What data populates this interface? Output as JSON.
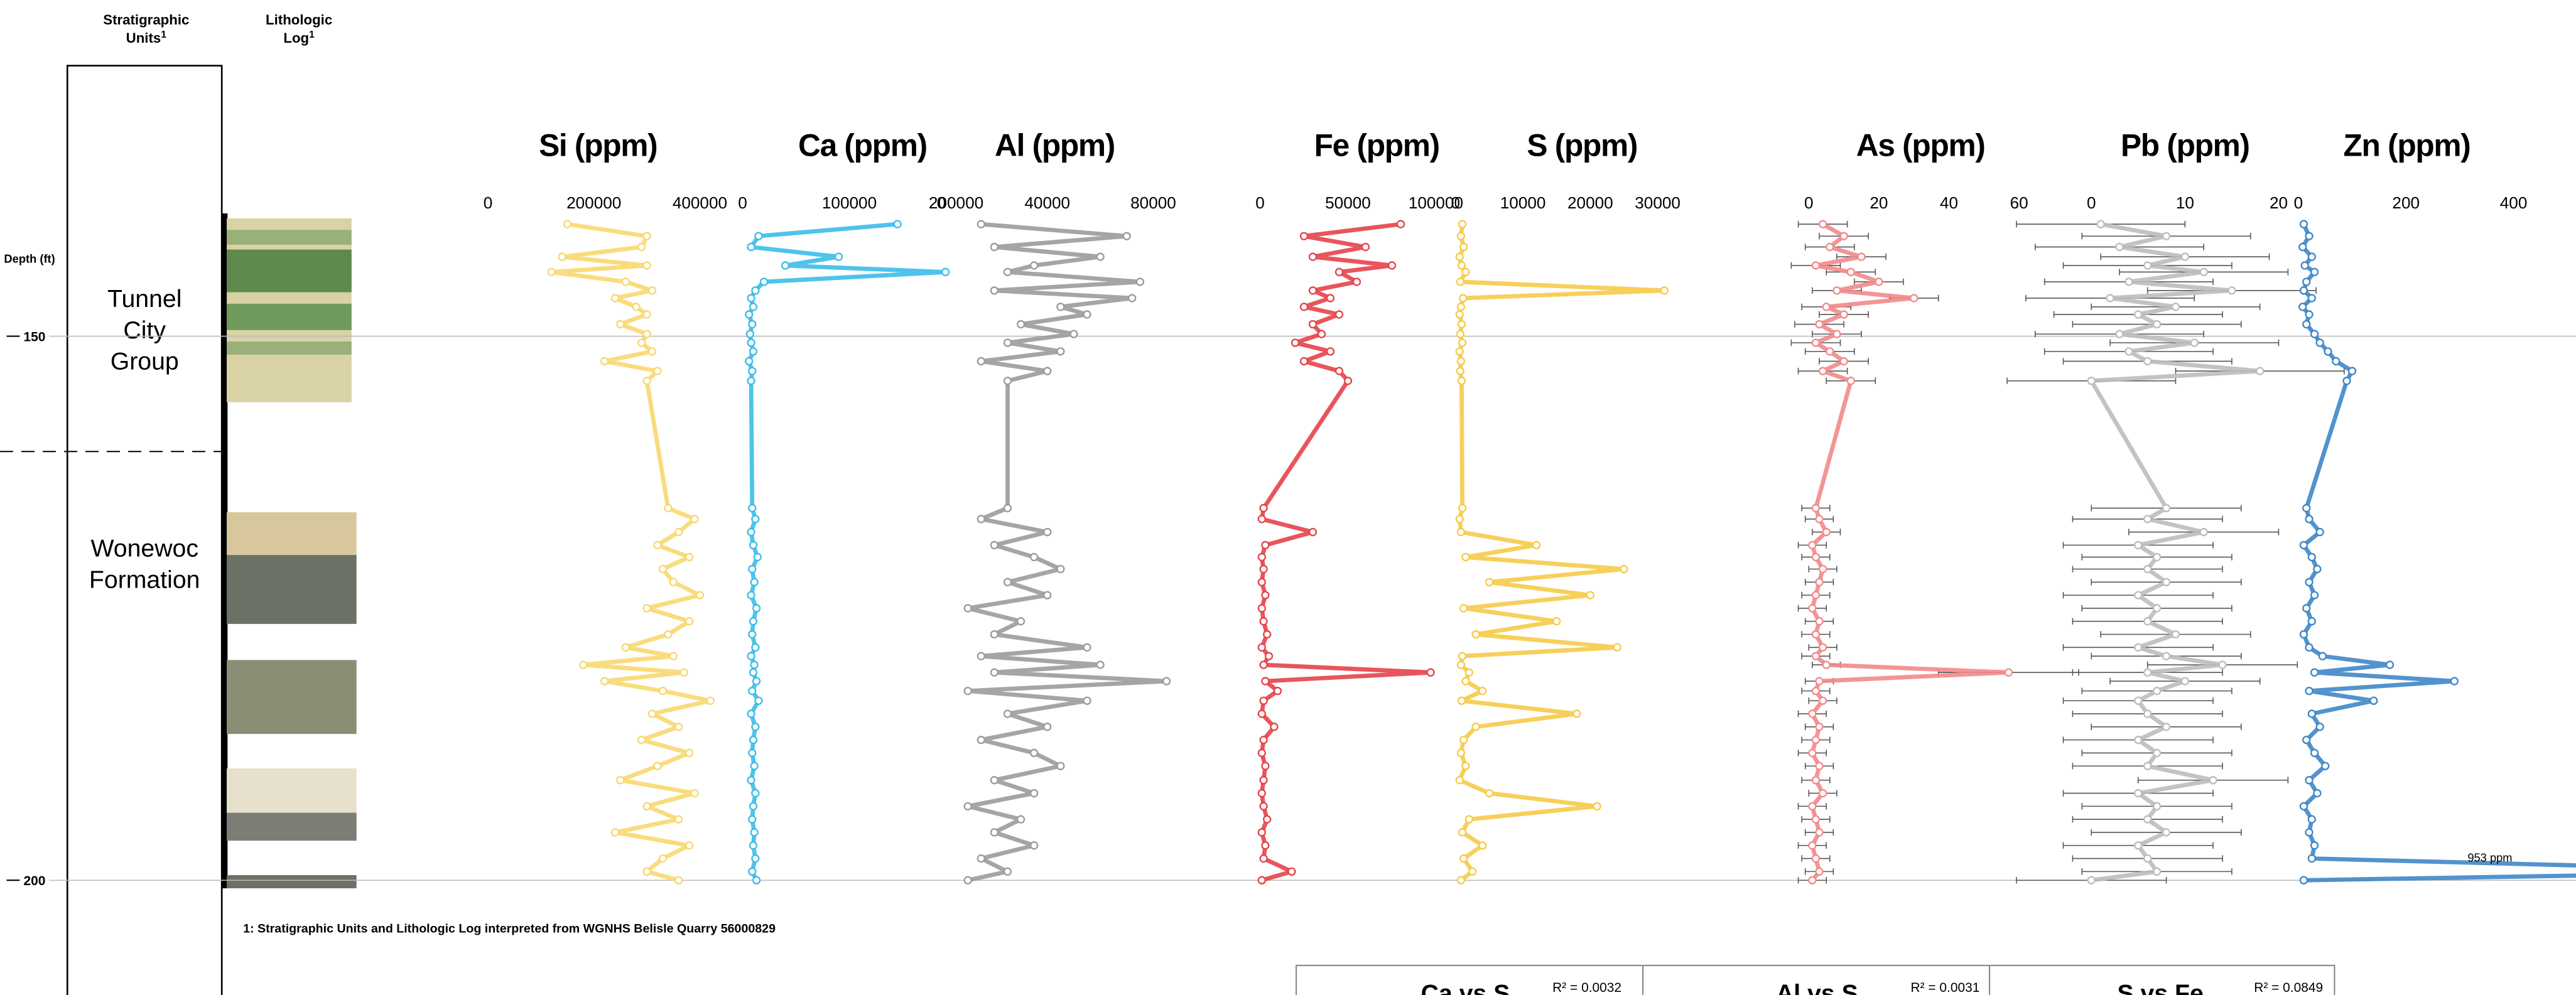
{
  "header": {
    "strat_units": "Stratigraphic",
    "strat_units_2": "Units",
    "litho_log": "Lithologic",
    "litho_log_2": "Log",
    "footnote_mark": "1"
  },
  "units": [
    {
      "lines": [
        "Tunnel",
        "City",
        "Group"
      ]
    },
    {
      "lines": [
        "Wonewoc",
        "Formation"
      ]
    }
  ],
  "footnote": "1: Stratigraphic Units and Lithologic Log interpreted from WGNHS Belisle Quarry 56000829",
  "crossplots": [
    {
      "title": "Ca vs S",
      "r2": "R² = 0.0032"
    },
    {
      "title": "Al vs S",
      "r2": "R² = 0.0031"
    },
    {
      "title": "S vs Fe",
      "r2": "R² = 0.0849"
    }
  ],
  "chart_data": {
    "type": "line",
    "y_label": "Depth (ft)",
    "ylim": [
      136,
      203
    ],
    "yticks": [
      150,
      200
    ],
    "depths": [
      139.7,
      140.8,
      141.8,
      142.7,
      143.5,
      144.1,
      145.0,
      145.8,
      146.5,
      147.3,
      148.0,
      148.9,
      149.8,
      150.6,
      151.4,
      152.3,
      153.2,
      154.1,
      165.8,
      166.8,
      168.0,
      169.2,
      170.3,
      171.4,
      172.6,
      173.8,
      175.0,
      176.2,
      177.4,
      178.6,
      179.4,
      180.2,
      180.9,
      181.7,
      182.6,
      183.5,
      184.7,
      185.9,
      187.1,
      188.3,
      189.5,
      190.8,
      192.0,
      193.2,
      194.4,
      195.6,
      196.8,
      198.0,
      199.2,
      200.0
    ],
    "panels": [
      {
        "title": "Si (ppm)",
        "color": "#f8d86f",
        "xlim": [
          0,
          400000
        ],
        "xticks": [
          0,
          200000,
          400000
        ],
        "values": [
          150000,
          300000,
          290000,
          140000,
          300000,
          120000,
          260000,
          310000,
          240000,
          280000,
          300000,
          250000,
          300000,
          290000,
          310000,
          220000,
          320000,
          300000,
          340000,
          390000,
          360000,
          320000,
          380000,
          330000,
          350000,
          400000,
          300000,
          380000,
          340000,
          260000,
          350000,
          180000,
          370000,
          220000,
          330000,
          420000,
          310000,
          360000,
          290000,
          380000,
          320000,
          250000,
          390000,
          300000,
          360000,
          240000,
          380000,
          330000,
          300000,
          360000
        ]
      },
      {
        "title": "Ca (ppm)",
        "color": "#3cbde9",
        "xlim": [
          0,
          200000
        ],
        "xticks": [
          0,
          100000,
          200000
        ],
        "values": [
          145000,
          15000,
          8000,
          90000,
          40000,
          190000,
          20000,
          12000,
          8000,
          10000,
          6000,
          9000,
          7000,
          8000,
          10000,
          6000,
          9000,
          8000,
          9000,
          12000,
          8000,
          10000,
          14000,
          9000,
          11000,
          8000,
          13000,
          10000,
          9000,
          12000,
          8000,
          11000,
          10000,
          13000,
          9000,
          15000,
          8000,
          12000,
          10000,
          9000,
          11000,
          8000,
          12000,
          10000,
          9000,
          11000,
          10000,
          12000,
          9000,
          13000
        ]
      },
      {
        "title": "Al (ppm)",
        "color": "#9b9b9b",
        "xlim": [
          0,
          80000
        ],
        "xticks": [
          0,
          40000,
          80000
        ],
        "values": [
          15000,
          70000,
          20000,
          60000,
          35000,
          25000,
          75000,
          20000,
          72000,
          45000,
          55000,
          30000,
          50000,
          25000,
          45000,
          15000,
          40000,
          25000,
          25000,
          15000,
          40000,
          20000,
          35000,
          45000,
          25000,
          40000,
          10000,
          30000,
          20000,
          55000,
          15000,
          60000,
          20000,
          85000,
          10000,
          55000,
          25000,
          40000,
          15000,
          35000,
          45000,
          20000,
          35000,
          10000,
          30000,
          20000,
          35000,
          15000,
          25000,
          10000
        ]
      },
      {
        "title": "Fe (ppm)",
        "color": "#e5434a",
        "xlim": [
          0,
          100000
        ],
        "xticks": [
          0,
          50000,
          100000
        ],
        "values": [
          80000,
          25000,
          60000,
          30000,
          75000,
          45000,
          55000,
          30000,
          40000,
          25000,
          45000,
          30000,
          35000,
          20000,
          40000,
          25000,
          45000,
          50000,
          2000,
          1000,
          30000,
          3000,
          1000,
          2000,
          1000,
          3000,
          1000,
          2000,
          4000,
          1000,
          5000,
          2000,
          97000,
          3000,
          10000,
          2000,
          1000,
          8000,
          2000,
          1000,
          3000,
          2000,
          1000,
          2000,
          4000,
          1000,
          3000,
          2000,
          18000,
          1000
        ]
      },
      {
        "title": "S (ppm)",
        "color": "#f6cb48",
        "xlim": [
          0,
          30000
        ],
        "xticks": [
          0,
          10000,
          20000,
          30000
        ],
        "values": [
          1000,
          800,
          1200,
          600,
          900,
          1500,
          700,
          31000,
          1100,
          800,
          600,
          900,
          700,
          1000,
          600,
          800,
          700,
          900,
          1000,
          600,
          800,
          12000,
          1500,
          25000,
          5000,
          20000,
          1200,
          15000,
          3000,
          24000,
          1000,
          800,
          2000,
          1500,
          4000,
          900,
          18000,
          3000,
          1200,
          800,
          1500,
          600,
          5000,
          21000,
          2000,
          1000,
          4000,
          1200,
          2500,
          800
        ]
      },
      {
        "title": "As (ppm)",
        "color": "#f28a8a",
        "xlim": [
          0,
          60
        ],
        "xticks": [
          0,
          20,
          40,
          60
        ],
        "values": [
          4,
          10,
          6,
          15,
          2,
          12,
          20,
          8,
          30,
          5,
          10,
          3,
          8,
          2,
          6,
          10,
          4,
          12,
          2,
          3,
          5,
          1,
          2,
          4,
          3,
          2,
          1,
          3,
          2,
          4,
          2,
          5,
          57,
          3,
          2,
          4,
          1,
          3,
          2,
          1,
          3,
          2,
          4,
          1,
          2,
          3,
          1,
          2,
          3,
          1
        ],
        "errors": [
          7,
          7,
          7,
          7,
          7,
          7,
          7,
          7,
          7,
          7,
          7,
          7,
          7,
          7,
          7,
          7,
          7,
          7,
          4,
          4,
          4,
          4,
          4,
          4,
          4,
          4,
          4,
          4,
          4,
          4,
          4,
          4,
          20,
          4,
          4,
          4,
          4,
          4,
          4,
          4,
          4,
          4,
          4,
          4,
          4,
          4,
          4,
          4,
          4,
          4
        ]
      },
      {
        "title": "Pb (ppm)",
        "color": "#bdbdbd",
        "xlim": [
          0,
          20
        ],
        "xticks": [
          0,
          10,
          20
        ],
        "values": [
          1,
          8,
          3,
          10,
          6,
          12,
          4,
          15,
          2,
          9,
          5,
          7,
          3,
          11,
          4,
          6,
          18,
          0,
          8,
          6,
          12,
          5,
          7,
          6,
          8,
          5,
          7,
          6,
          9,
          5,
          8,
          14,
          6,
          10,
          7,
          5,
          6,
          8,
          5,
          7,
          6,
          13,
          5,
          7,
          6,
          8,
          5,
          6,
          7,
          0
        ],
        "errors": [
          9,
          9,
          9,
          9,
          9,
          9,
          9,
          9,
          9,
          9,
          9,
          9,
          9,
          9,
          9,
          9,
          9,
          9,
          8,
          8,
          8,
          8,
          8,
          8,
          8,
          8,
          8,
          8,
          8,
          8,
          8,
          8,
          8,
          8,
          8,
          8,
          8,
          8,
          8,
          8,
          8,
          8,
          8,
          8,
          8,
          8,
          8,
          8,
          8,
          8
        ]
      },
      {
        "title": "Zn (ppm)",
        "color": "#3f87c8",
        "xlim": [
          0,
          400
        ],
        "xticks": [
          0,
          200,
          400
        ],
        "annotation": "953 ppm",
        "values": [
          10,
          20,
          8,
          25,
          12,
          30,
          15,
          10,
          25,
          8,
          20,
          15,
          30,
          40,
          55,
          70,
          100,
          90,
          15,
          20,
          40,
          10,
          25,
          35,
          20,
          30,
          15,
          25,
          10,
          20,
          45,
          170,
          30,
          290,
          20,
          140,
          25,
          40,
          15,
          30,
          50,
          20,
          35,
          10,
          25,
          20,
          30,
          25,
          953,
          10
        ]
      }
    ]
  }
}
